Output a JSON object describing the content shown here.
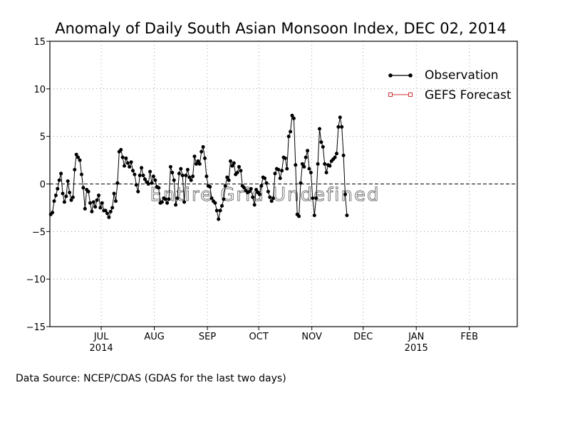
{
  "chart_data": {
    "type": "line",
    "title": "Anomaly of Daily South Asian Monsoon Index, DEC 02, 2014",
    "xlabel": "",
    "ylabel": "",
    "ylim": [
      -15,
      15
    ],
    "yticks": [
      {
        "value": 15,
        "label": "15"
      },
      {
        "value": 10,
        "label": "10"
      },
      {
        "value": 5,
        "label": "5"
      },
      {
        "value": 0,
        "label": "0"
      },
      {
        "value": -5,
        "label": "−5"
      },
      {
        "value": -10,
        "label": "−10"
      },
      {
        "value": -15,
        "label": "−15"
      }
    ],
    "xlim": [
      "2014-06-01",
      "2015-03-01"
    ],
    "xticks": [
      {
        "date": "2014-07-01",
        "label": "JUL",
        "sublabel": "2014"
      },
      {
        "date": "2014-08-01",
        "label": "AUG",
        "sublabel": ""
      },
      {
        "date": "2014-09-01",
        "label": "SEP",
        "sublabel": ""
      },
      {
        "date": "2014-10-01",
        "label": "OCT",
        "sublabel": ""
      },
      {
        "date": "2014-11-01",
        "label": "NOV",
        "sublabel": ""
      },
      {
        "date": "2014-12-01",
        "label": "DEC",
        "sublabel": ""
      },
      {
        "date": "2015-01-01",
        "label": "JAN",
        "sublabel": "2015"
      },
      {
        "date": "2015-02-01",
        "label": "FEB",
        "sublabel": ""
      }
    ],
    "grid": true,
    "zero_line": true,
    "legend_position": "top-right",
    "series": [
      {
        "name": "Observation",
        "color": "#000000",
        "marker": "filled-circle",
        "start_date": "2014-06-01",
        "values": [
          -3.2,
          -3.0,
          -1.8,
          -1.2,
          -0.5,
          0.4,
          1.1,
          -1.0,
          -1.9,
          -1.3,
          0.3,
          -0.9,
          -1.7,
          -1.4,
          1.5,
          3.1,
          2.8,
          2.5,
          1.0,
          -0.4,
          -2.6,
          -0.6,
          -0.8,
          -2.0,
          -2.9,
          -1.9,
          -2.4,
          -1.7,
          -1.2,
          -2.5,
          -2.0,
          -2.8,
          -2.8,
          -3.1,
          -3.5,
          -2.9,
          -2.5,
          -1.0,
          -1.8,
          0.1,
          3.4,
          3.6,
          2.8,
          1.9,
          2.7,
          2.2,
          1.8,
          2.3,
          1.4,
          1.0,
          -0.1,
          -0.8,
          0.9,
          1.7,
          0.9,
          0.5,
          0.2,
          0.0,
          1.3,
          0.1,
          0.8,
          0.4,
          -0.3,
          -0.4,
          -2.0,
          -1.9,
          -1.5,
          -1.6,
          -2.0,
          -1.6,
          1.8,
          1.2,
          0.4,
          -2.2,
          -1.5,
          1.1,
          1.6,
          0.9,
          -1.9,
          0.9,
          1.5,
          0.7,
          0.4,
          0.8,
          2.9,
          2.1,
          2.4,
          2.1,
          3.4,
          3.9,
          2.7,
          0.8,
          -0.2,
          -0.3,
          -1.5,
          -1.8,
          -2.0,
          -2.8,
          -3.7,
          -2.8,
          -2.3,
          -1.6,
          -0.2,
          0.7,
          0.4,
          2.4,
          1.9,
          2.2,
          1.0,
          1.2,
          1.8,
          1.4,
          -0.2,
          -0.4,
          -0.7,
          -0.9,
          -0.8,
          -0.5,
          -1.4,
          -2.2,
          -0.6,
          -0.9,
          -1.1,
          -0.2,
          0.7,
          0.6,
          0.1,
          -0.8,
          -1.4,
          -1.8,
          -1.5,
          1.1,
          1.6,
          1.5,
          0.6,
          1.4,
          2.8,
          2.7,
          1.6,
          5.0,
          5.5,
          7.2,
          6.9,
          2.0,
          -3.2,
          -3.4,
          0.1,
          2.1,
          1.8,
          2.8,
          3.5,
          1.6,
          1.2,
          -1.5,
          -3.3,
          -1.5,
          2.1,
          5.8,
          4.4,
          3.9,
          2.1,
          1.2,
          2.0,
          1.9,
          2.4,
          2.6,
          2.8,
          3.2,
          6.0,
          7.0,
          6.0,
          3.0,
          -1.1,
          -3.3
        ]
      },
      {
        "name": "GEFS Forecast",
        "color": "#cc3333",
        "marker": "open-square",
        "values": []
      }
    ]
  },
  "watermark": "Entire Grid Undefined",
  "footer": {
    "data_source": "Data Source:  NCEP/CDAS (GDAS for the last two days)"
  }
}
